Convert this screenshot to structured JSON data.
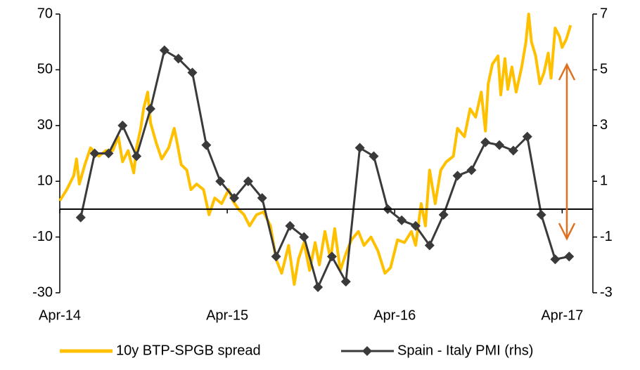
{
  "chart_data": {
    "type": "line",
    "xlim": [
      0,
      38.2
    ],
    "xticks": [
      {
        "value": 0,
        "label": "Apr-14"
      },
      {
        "value": 12,
        "label": "Apr-15"
      },
      {
        "value": 24,
        "label": "Apr-16"
      },
      {
        "value": 36,
        "label": "Apr-17"
      }
    ],
    "ylim": [
      -30,
      70
    ],
    "yticks": [
      -30,
      -10,
      10,
      30,
      50,
      70
    ],
    "y2lim": [
      -3,
      7
    ],
    "y2ticks": [
      -3,
      -1,
      1,
      3,
      5,
      7
    ],
    "series": [
      {
        "name": "10y BTP-SPGB spread",
        "color": "#FFC000",
        "x": [
          0,
          0.5,
          1.0,
          1.2,
          1.4,
          1.8,
          2.2,
          2.8,
          3.3,
          3.8,
          4.2,
          4.5,
          4.9,
          5.3,
          5.5,
          5.8,
          6.0,
          6.3,
          6.5,
          6.9,
          7.3,
          7.8,
          8.2,
          8.4,
          8.7,
          9.1,
          9.4,
          9.8,
          10.3,
          10.7,
          11.1,
          11.6,
          12.1,
          12.4,
          12.8,
          13.2,
          13.6,
          14.1,
          14.6,
          15.1,
          15.5,
          15.9,
          16.4,
          16.8,
          17.1,
          17.5,
          17.9,
          18.3,
          18.6,
          19.0,
          19.4,
          19.7,
          20.1,
          20.5,
          20.9,
          21.4,
          21.8,
          22.3,
          22.8,
          23.3,
          23.7,
          24.2,
          24.7,
          25.2,
          25.5,
          25.9,
          26.2,
          26.5,
          26.9,
          27.3,
          27.7,
          28.2,
          28.5,
          29.0,
          29.4,
          29.8,
          30.2,
          30.5,
          30.7,
          31.0,
          31.4,
          31.6,
          31.9,
          32.1,
          32.4,
          32.7,
          33.1,
          33.4,
          33.6,
          33.8,
          34.1,
          34.4,
          34.7,
          35.0,
          35.2,
          35.5,
          35.8,
          36.0,
          36.3,
          36.6
        ],
        "values": [
          3,
          7,
          12,
          18,
          9,
          16,
          22,
          19,
          21,
          21,
          26,
          17,
          21,
          13,
          22,
          29,
          36,
          42,
          31,
          24,
          18,
          22,
          29,
          24,
          16,
          14,
          7,
          9,
          7,
          -2,
          4,
          2,
          7,
          3,
          0,
          -2,
          -6,
          -2,
          -1,
          -6,
          -18,
          -23,
          -13,
          -27,
          -18,
          -12,
          -22,
          -12,
          -20,
          -8,
          -18,
          -7,
          -22,
          -16,
          -11,
          -8,
          -13,
          -10,
          -15,
          -23,
          -21,
          -11,
          -12,
          -8,
          -13,
          2,
          -6,
          14,
          2,
          14,
          17,
          19,
          29,
          26,
          36,
          33,
          42,
          28,
          45,
          52,
          55,
          41,
          54,
          43,
          51,
          42,
          51,
          60,
          70,
          60,
          55,
          45,
          49,
          56,
          47,
          65,
          62,
          58,
          61,
          66
        ]
      },
      {
        "name": "Spain - Italy PMI (rhs)",
        "color": "#3A3A3A",
        "axis": "y2",
        "marker": "diamond",
        "x": [
          1.5,
          2.5,
          3.5,
          4.5,
          5.5,
          6.5,
          7.5,
          8.5,
          9.5,
          10.5,
          11.5,
          12.5,
          13.5,
          14.5,
          15.5,
          16.5,
          17.5,
          18.5,
          19.5,
          20.5,
          21.5,
          22.5,
          23.5,
          24.5,
          25.5,
          26.5,
          27.5,
          28.5,
          29.5,
          30.5,
          31.5,
          32.5,
          33.5,
          34.5,
          35.5,
          36.5
        ],
        "values": [
          -0.3,
          2.0,
          2.0,
          3.0,
          1.9,
          3.6,
          5.7,
          5.4,
          4.9,
          2.3,
          1.0,
          0.4,
          1.0,
          0.4,
          -1.7,
          -0.6,
          -1.0,
          -2.8,
          -1.7,
          -2.6,
          2.2,
          1.9,
          0,
          -0.4,
          -0.6,
          -1.3,
          -0.2,
          1.2,
          1.4,
          2.4,
          2.3,
          2.1,
          2.6,
          -0.2,
          -1.8,
          -1.7
        ]
      }
    ]
  }
}
